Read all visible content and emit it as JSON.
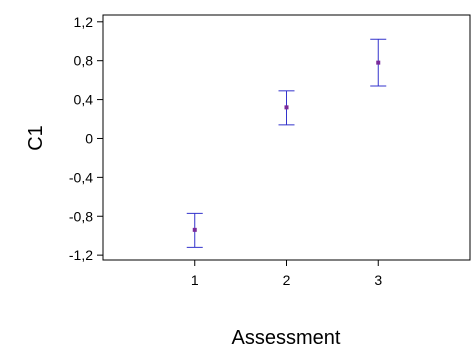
{
  "chart_data": {
    "type": "scatter",
    "subtype": "means-with-error-bars",
    "title": "",
    "xlabel": "Assessment",
    "ylabel": "C1",
    "categories": [
      "1",
      "2",
      "3"
    ],
    "series": [
      {
        "values": [
          -0.94,
          0.32,
          0.78
        ],
        "lower": [
          -1.12,
          0.14,
          0.54
        ],
        "upper": [
          -0.77,
          0.49,
          1.02
        ]
      }
    ],
    "x_tick_labels": [
      "1",
      "2",
      "3"
    ],
    "y_tick_values": [
      -1.2,
      -0.8,
      -0.4,
      0,
      0.4,
      0.8,
      1.2
    ],
    "y_tick_labels": [
      "-1,2",
      "-0,8",
      "-0,4",
      "0",
      "0,4",
      "0,8",
      "1,2"
    ],
    "xlim": [
      0,
      4
    ],
    "ylim": [
      -1.25,
      1.27
    ],
    "grid": false,
    "legend": "none",
    "colors": {
      "errorbar": "#3333cc",
      "point": "#7a2a9a",
      "axis": "#000000"
    }
  }
}
